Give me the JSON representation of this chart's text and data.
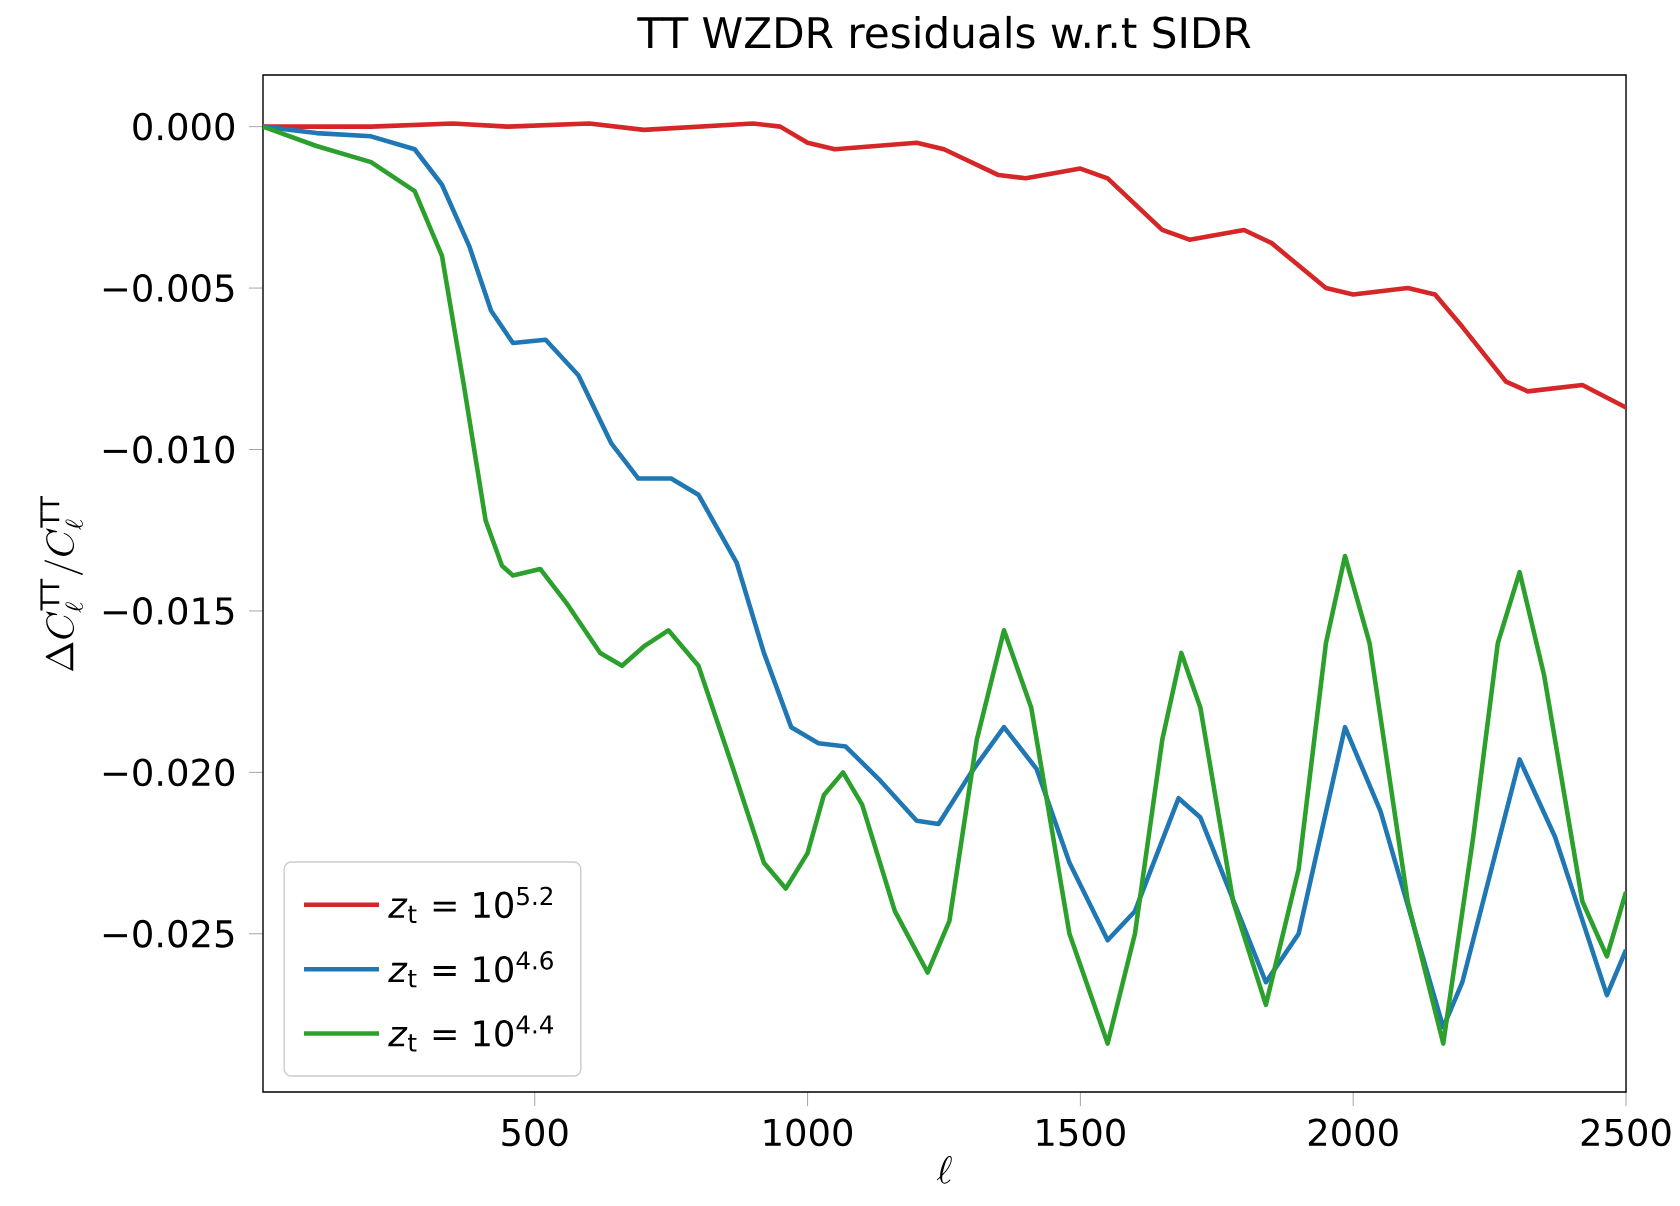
{
  "chart_data": {
    "type": "line",
    "title": "TT WZDR residuals w.r.t SIDR",
    "xlabel": "\\ell",
    "ylabel": "\\Delta C_\\ell^{\\mathrm{TT}}/C_\\ell^{\\mathrm{TT}}",
    "xlim": [
      2,
      2500
    ],
    "ylim": [
      -0.0299,
      0.0016
    ],
    "xticks": [
      500,
      1000,
      1500,
      2000,
      2500
    ],
    "yticks": [
      {
        "value": 0,
        "label": "0.000"
      },
      {
        "value": -0.005,
        "label": "−0.005"
      },
      {
        "value": -0.01,
        "label": "−0.010"
      },
      {
        "value": -0.015,
        "label": "−0.015"
      },
      {
        "value": -0.02,
        "label": "−0.020"
      },
      {
        "value": -0.025,
        "label": "−0.025"
      }
    ],
    "legend": "bottom left",
    "grid": false,
    "marker": "none",
    "line_style": "solid",
    "series": [
      {
        "name": "*z*$_{t}$ = 10$^{5.2}$",
        "color": "#d62728",
        "x": [
          2,
          200,
          350,
          450,
          600,
          700,
          900,
          950,
          1000,
          1050,
          1200,
          1250,
          1350,
          1400,
          1500,
          1550,
          1650,
          1700,
          1800,
          1850,
          1950,
          2000,
          2100,
          2150,
          2200,
          2280,
          2320,
          2420,
          2500
        ],
        "values": [
          0,
          0,
          0.0001,
          0,
          0.0001,
          -0.0001,
          0.0001,
          0,
          -0.0005,
          -0.0007,
          -0.0005,
          -0.0007,
          -0.0015,
          -0.0016,
          -0.0013,
          -0.0016,
          -0.0032,
          -0.0035,
          -0.0032,
          -0.0036,
          -0.005,
          -0.0052,
          -0.005,
          -0.0052,
          -0.0062,
          -0.0079,
          -0.0082,
          -0.008,
          -0.0087
        ]
      },
      {
        "name": "*z*$_{t}$ = 10$^{4.6}$",
        "color": "#1f77b4",
        "x": [
          2,
          100,
          200,
          280,
          330,
          380,
          420,
          460,
          520,
          580,
          640,
          690,
          750,
          800,
          870,
          920,
          970,
          1020,
          1070,
          1130,
          1200,
          1240,
          1300,
          1360,
          1420,
          1480,
          1550,
          1600,
          1680,
          1720,
          1840,
          1900,
          1985,
          2050,
          2165,
          2200,
          2305,
          2370,
          2465,
          2500
        ],
        "values": [
          0,
          -0.0002,
          -0.0003,
          -0.0007,
          -0.0018,
          -0.0037,
          -0.0057,
          -0.0067,
          -0.0066,
          -0.0077,
          -0.0098,
          -0.0109,
          -0.0109,
          -0.0114,
          -0.0135,
          -0.0163,
          -0.0186,
          -0.0191,
          -0.0192,
          -0.0202,
          -0.0215,
          -0.0216,
          -0.02,
          -0.0186,
          -0.0199,
          -0.0228,
          -0.0252,
          -0.0243,
          -0.0208,
          -0.0214,
          -0.0265,
          -0.025,
          -0.0186,
          -0.0212,
          -0.0279,
          -0.0265,
          -0.0196,
          -0.022,
          -0.0269,
          -0.0255
        ]
      },
      {
        "name": "*z*$_{t}$ = 10$^{4.4}$",
        "color": "#2ca02c",
        "x": [
          2,
          100,
          200,
          280,
          330,
          370,
          410,
          440,
          460,
          510,
          560,
          620,
          660,
          700,
          745,
          800,
          860,
          920,
          960,
          1000,
          1030,
          1065,
          1100,
          1160,
          1220,
          1260,
          1310,
          1360,
          1410,
          1480,
          1550,
          1600,
          1650,
          1685,
          1720,
          1780,
          1840,
          1900,
          1950,
          1985,
          2030,
          2100,
          2165,
          2220,
          2265,
          2305,
          2350,
          2420,
          2465,
          2500
        ],
        "values": [
          0,
          -0.0006,
          -0.0011,
          -0.002,
          -0.004,
          -0.008,
          -0.0122,
          -0.0136,
          -0.0139,
          -0.0137,
          -0.0148,
          -0.0163,
          -0.0167,
          -0.0161,
          -0.0156,
          -0.0167,
          -0.0197,
          -0.0228,
          -0.0236,
          -0.0225,
          -0.0207,
          -0.02,
          -0.021,
          -0.0243,
          -0.0262,
          -0.0246,
          -0.019,
          -0.0156,
          -0.018,
          -0.025,
          -0.0284,
          -0.025,
          -0.019,
          -0.0163,
          -0.018,
          -0.024,
          -0.0272,
          -0.023,
          -0.016,
          -0.0133,
          -0.016,
          -0.024,
          -0.0284,
          -0.022,
          -0.016,
          -0.0138,
          -0.017,
          -0.024,
          -0.0257,
          -0.0237
        ]
      }
    ]
  }
}
